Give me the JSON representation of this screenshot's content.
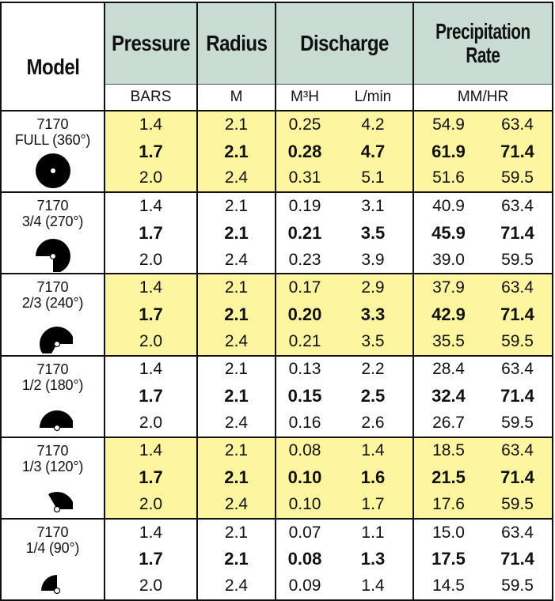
{
  "headers": {
    "model": "Model",
    "pressure": "Pressure",
    "radius": "Radius",
    "discharge": "Discharge",
    "precipitation_line1": "Precipitation",
    "precipitation_line2": "Rate"
  },
  "units": {
    "pressure": "BARS",
    "radius": "M",
    "discharge_m3h": "M³H",
    "discharge_lmin": "L/min",
    "precipitation": "MM/HR"
  },
  "colors": {
    "header_bg": "#c9dcd3",
    "highlight_row": "#fdf5a0",
    "border": "#111111"
  },
  "groups": [
    {
      "model": "7170",
      "arc": "FULL (360°)",
      "icon": "full-circle-icon",
      "degrees": 360,
      "highlight": true,
      "rows": [
        [
          "1.4",
          "2.1",
          "0.25",
          "4.2",
          "54.9",
          "63.4"
        ],
        [
          "1.7",
          "2.1",
          "0.28",
          "4.7",
          "61.9",
          "71.4"
        ],
        [
          "2.0",
          "2.4",
          "0.31",
          "5.1",
          "51.6",
          "59.5"
        ]
      ]
    },
    {
      "model": "7170",
      "arc": "3/4 (270°)",
      "icon": "three-quarter-arc-icon",
      "degrees": 270,
      "highlight": false,
      "rows": [
        [
          "1.4",
          "2.1",
          "0.19",
          "3.1",
          "40.9",
          "63.4"
        ],
        [
          "1.7",
          "2.1",
          "0.21",
          "3.5",
          "45.9",
          "71.4"
        ],
        [
          "2.0",
          "2.4",
          "0.23",
          "3.9",
          "39.0",
          "59.5"
        ]
      ]
    },
    {
      "model": "7170",
      "arc": "2/3 (240°)",
      "icon": "two-thirds-arc-icon",
      "degrees": 240,
      "highlight": true,
      "rows": [
        [
          "1.4",
          "2.1",
          "0.17",
          "2.9",
          "37.9",
          "63.4"
        ],
        [
          "1.7",
          "2.1",
          "0.20",
          "3.3",
          "42.9",
          "71.4"
        ],
        [
          "2.0",
          "2.4",
          "0.21",
          "3.5",
          "35.5",
          "59.5"
        ]
      ]
    },
    {
      "model": "7170",
      "arc": "1/2 (180°)",
      "icon": "half-arc-icon",
      "degrees": 180,
      "highlight": false,
      "rows": [
        [
          "1.4",
          "2.1",
          "0.13",
          "2.2",
          "28.4",
          "63.4"
        ],
        [
          "1.7",
          "2.1",
          "0.15",
          "2.5",
          "32.4",
          "71.4"
        ],
        [
          "2.0",
          "2.4",
          "0.16",
          "2.6",
          "26.7",
          "59.5"
        ]
      ]
    },
    {
      "model": "7170",
      "arc": "1/3 (120°)",
      "icon": "one-third-arc-icon",
      "degrees": 120,
      "highlight": true,
      "rows": [
        [
          "1.4",
          "2.1",
          "0.08",
          "1.4",
          "18.5",
          "63.4"
        ],
        [
          "1.7",
          "2.1",
          "0.10",
          "1.6",
          "21.5",
          "71.4"
        ],
        [
          "2.0",
          "2.4",
          "0.10",
          "1.7",
          "17.6",
          "59.5"
        ]
      ]
    },
    {
      "model": "7170",
      "arc": "1/4 (90°)",
      "icon": "quarter-arc-icon",
      "degrees": 90,
      "highlight": false,
      "rows": [
        [
          "1.4",
          "2.1",
          "0.07",
          "1.1",
          "15.0",
          "63.4"
        ],
        [
          "1.7",
          "2.1",
          "0.08",
          "1.3",
          "17.5",
          "71.4"
        ],
        [
          "2.0",
          "2.4",
          "0.09",
          "1.4",
          "14.5",
          "59.5"
        ]
      ]
    }
  ]
}
